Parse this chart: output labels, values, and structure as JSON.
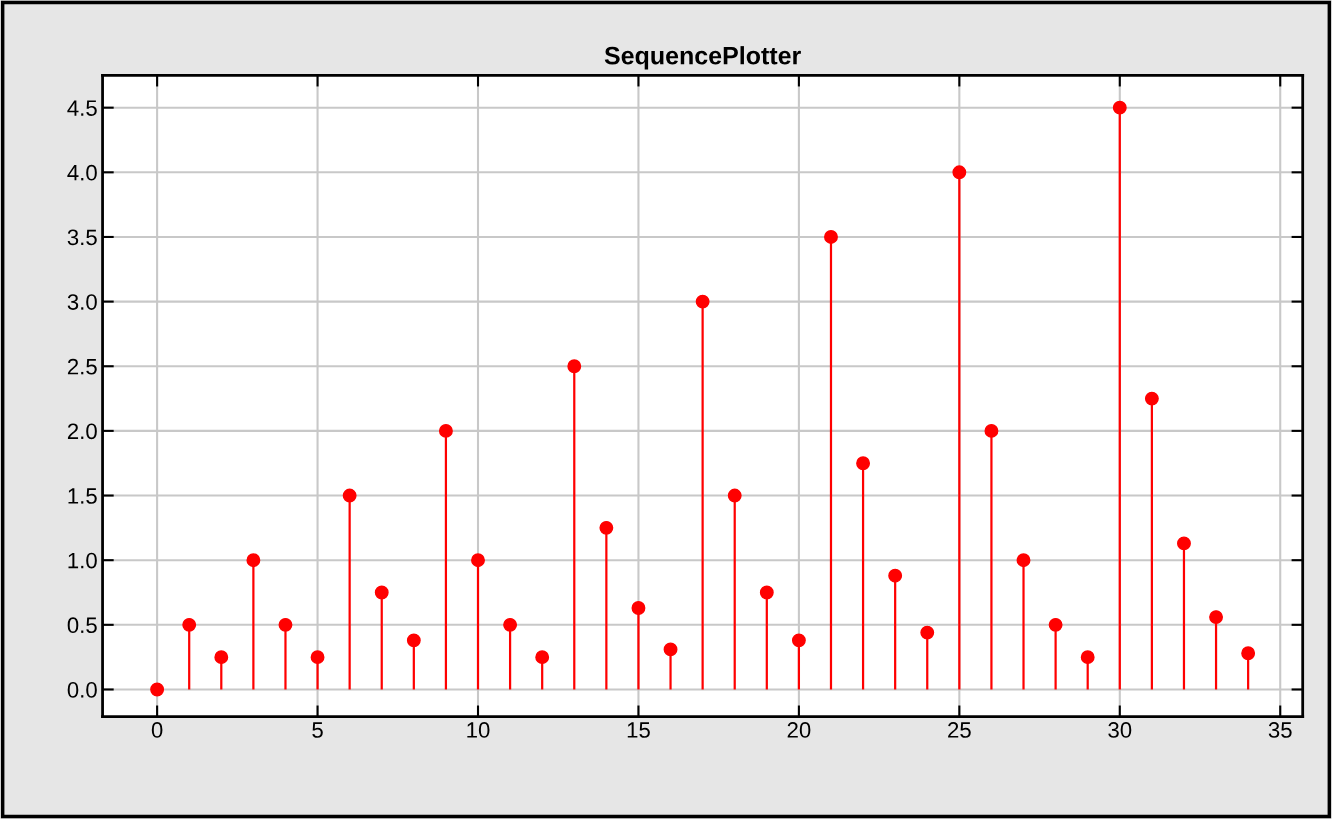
{
  "chart_data": {
    "type": "lollipop",
    "title": "SequencePlotter",
    "x": [
      0,
      1,
      2,
      3,
      4,
      5,
      6,
      7,
      8,
      9,
      10,
      11,
      12,
      13,
      14,
      15,
      16,
      17,
      18,
      19,
      20,
      21,
      22,
      23,
      24,
      25,
      26,
      27,
      28,
      29,
      30,
      31,
      32,
      33,
      34
    ],
    "series": [
      {
        "color": "#ff0000",
        "values": [
          0,
          0.5,
          0.25,
          1.0,
          0.5,
          0.25,
          1.5,
          0.75,
          0.38,
          2.0,
          1.0,
          0.5,
          0.25,
          2.5,
          1.25,
          0.63,
          0.31,
          3.0,
          1.5,
          0.75,
          0.38,
          3.5,
          1.75,
          0.88,
          0.44,
          4.0,
          2.0,
          1.0,
          0.5,
          0.25,
          4.5,
          2.25,
          1.13,
          0.56,
          0.28
        ]
      }
    ],
    "xlim": [
      -1.7,
      35.7
    ],
    "ylim": [
      -0.21,
      4.75
    ],
    "xticks": [
      0,
      5,
      10,
      15,
      20,
      25,
      30,
      35
    ],
    "yticks": [
      {
        "value": 0,
        "label": "0.0"
      },
      {
        "value": 0.5,
        "label": "0.5"
      },
      {
        "value": 1,
        "label": "1.0"
      },
      {
        "value": 1.5,
        "label": "1.5"
      },
      {
        "value": 2,
        "label": "2.0"
      },
      {
        "value": 2.5,
        "label": "2.5"
      },
      {
        "value": 3,
        "label": "3.0"
      },
      {
        "value": 3.5,
        "label": "3.5"
      },
      {
        "value": 4,
        "label": "4.0"
      },
      {
        "value": 4.5,
        "label": "4.5"
      }
    ],
    "grid": true,
    "marker": "circle"
  }
}
